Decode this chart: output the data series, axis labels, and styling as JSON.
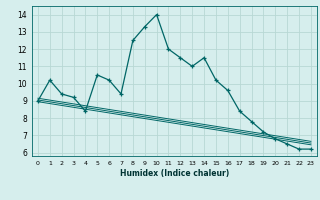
{
  "title": "",
  "xlabel": "Humidex (Indice chaleur)",
  "bg_color": "#d6eeed",
  "grid_color": "#b8d8d4",
  "line_color": "#006666",
  "xlim": [
    -0.5,
    23.5
  ],
  "ylim": [
    5.8,
    14.5
  ],
  "yticks": [
    6,
    7,
    8,
    9,
    10,
    11,
    12,
    13,
    14
  ],
  "xticks": [
    0,
    1,
    2,
    3,
    4,
    5,
    6,
    7,
    8,
    9,
    10,
    11,
    12,
    13,
    14,
    15,
    16,
    17,
    18,
    19,
    20,
    21,
    22,
    23
  ],
  "main_x": [
    0,
    1,
    2,
    3,
    4,
    5,
    6,
    7,
    8,
    9,
    10,
    11,
    12,
    13,
    14,
    15,
    16,
    17,
    18,
    19,
    20,
    21,
    22,
    23
  ],
  "main_y": [
    9.0,
    10.2,
    9.4,
    9.2,
    8.4,
    10.5,
    10.2,
    9.4,
    12.5,
    13.3,
    14.0,
    12.0,
    11.5,
    11.0,
    11.5,
    10.2,
    9.6,
    8.4,
    7.8,
    7.2,
    6.8,
    6.5,
    6.2,
    6.2
  ],
  "reg_lines": [
    {
      "x": [
        0,
        23
      ],
      "y": [
        9.05,
        6.55
      ]
    },
    {
      "x": [
        0,
        23
      ],
      "y": [
        9.15,
        6.65
      ]
    },
    {
      "x": [
        0,
        23
      ],
      "y": [
        8.95,
        6.45
      ]
    }
  ]
}
